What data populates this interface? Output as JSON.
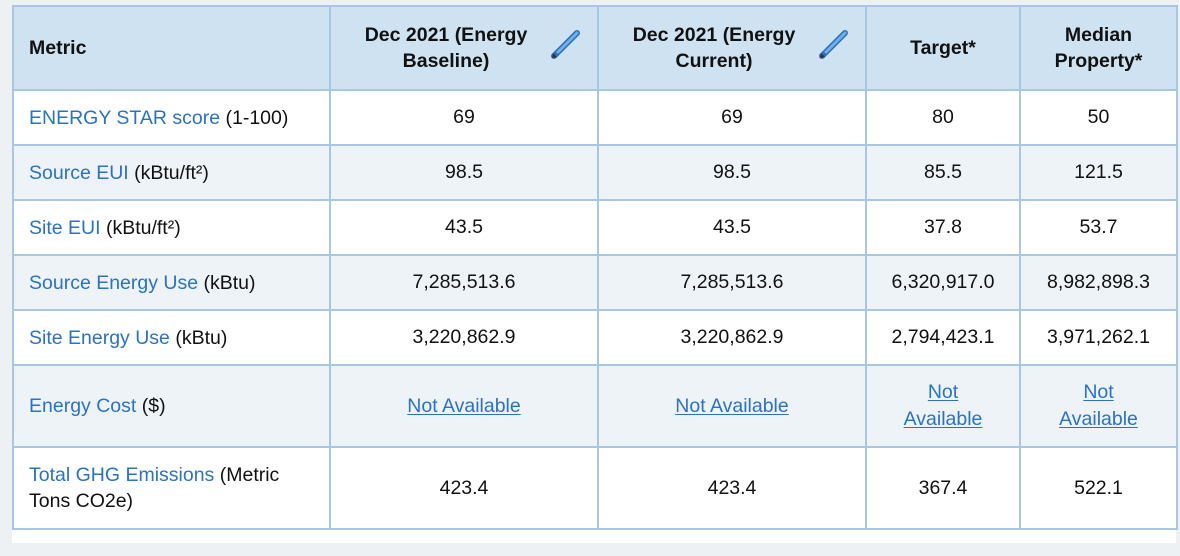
{
  "header": {
    "metric": "Metric",
    "baseline": "Dec 2021 (Energy Baseline)",
    "current": "Dec 2021 (Energy Current)",
    "target": "Target*",
    "median": "Median Property*"
  },
  "rows": [
    {
      "link": "ENERGY STAR score",
      "unit": " (1-100)",
      "baseline": "69",
      "current": "69",
      "target": "80",
      "median": "50"
    },
    {
      "link": "Source EUI",
      "unit": " (kBtu/ft²)",
      "baseline": "98.5",
      "current": "98.5",
      "target": "85.5",
      "median": "121.5"
    },
    {
      "link": "Site EUI",
      "unit": " (kBtu/ft²)",
      "baseline": "43.5",
      "current": "43.5",
      "target": "37.8",
      "median": "53.7"
    },
    {
      "link": "Source Energy Use",
      "unit": " (kBtu)",
      "baseline": "7,285,513.6",
      "current": "7,285,513.6",
      "target": "6,320,917.0",
      "median": "8,982,898.3"
    },
    {
      "link": "Site Energy Use",
      "unit": " (kBtu)",
      "baseline": "3,220,862.9",
      "current": "3,220,862.9",
      "target": "2,794,423.1",
      "median": "3,971,262.1"
    },
    {
      "link": "Energy Cost",
      "unit": " ($)",
      "baseline": "Not Available",
      "current": "Not Available",
      "target": "Not Available",
      "median": "Not Available"
    },
    {
      "link": "Total GHG Emissions",
      "unit": " (Metric Tons CO2e)",
      "baseline": "423.4",
      "current": "423.4",
      "target": "367.4",
      "median": "522.1"
    }
  ],
  "icons": {
    "edit": "pencil-icon"
  },
  "colors": {
    "link": "#2a72c8",
    "header_bg": "#cfe2f1",
    "border": "#a9c7e3",
    "alt_row": "#edf3f7"
  }
}
